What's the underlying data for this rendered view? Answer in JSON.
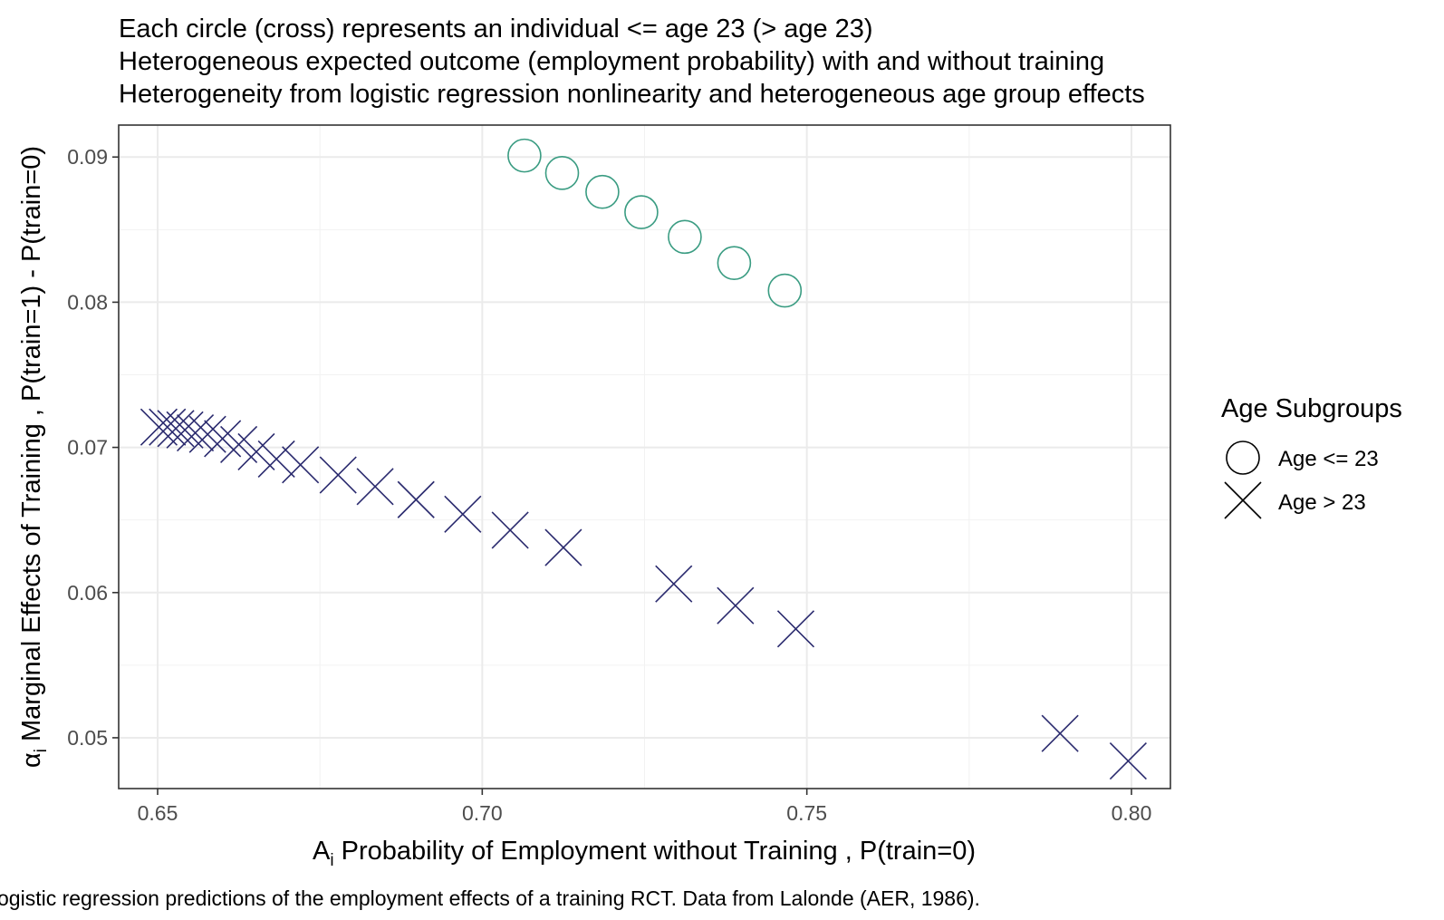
{
  "chart_data": {
    "type": "scatter",
    "title_lines": [
      "Each circle (cross) represents an individual <= age 23 (> age 23)",
      "Heterogeneous expected outcome (employment probability) with and without training",
      "Heterogeneity from logistic regression nonlinearity and heterogeneous age group effects"
    ],
    "xlabel": "Probability of Employment without Training , P(train=0)",
    "xlabel_symbol": "A",
    "xlabel_subscript": "i",
    "ylabel": "Marginal Effects of Training , P(train=1) - P(train=0)",
    "ylabel_symbol": "α",
    "ylabel_subscript": "i",
    "xlim": [
      0.644,
      0.806
    ],
    "ylim": [
      0.0465,
      0.0922
    ],
    "x_ticks": [
      0.65,
      0.7,
      0.75,
      0.8
    ],
    "x_tick_labels": [
      "0.65",
      "0.70",
      "0.75",
      "0.80"
    ],
    "y_ticks": [
      0.05,
      0.06,
      0.07,
      0.08,
      0.09
    ],
    "y_tick_labels": [
      "0.05",
      "0.06",
      "0.07",
      "0.08",
      "0.09"
    ],
    "grid": true,
    "legend": {
      "title": "Age Subgroups",
      "position": "right",
      "entries": [
        "Age <= 23",
        "Age > 23"
      ]
    },
    "caption": "ogistic regression predictions of the employment effects of a training RCT. Data from Lalonde (AER, 1986).",
    "series": [
      {
        "name": "Age <= 23",
        "marker": "circle",
        "color": "#3a9c82",
        "x": [
          0.7065,
          0.7123,
          0.7185,
          0.7245,
          0.7312,
          0.7388,
          0.7466
        ],
        "y": [
          0.0901,
          0.0889,
          0.0876,
          0.0862,
          0.0845,
          0.0827,
          0.0808
        ]
      },
      {
        "name": "Age > 23",
        "marker": "cross",
        "color": "#2a2a6e",
        "x": [
          0.6502,
          0.6515,
          0.6528,
          0.6542,
          0.6558,
          0.6577,
          0.66,
          0.6625,
          0.6652,
          0.6683,
          0.672,
          0.6778,
          0.6835,
          0.6898,
          0.697,
          0.7043,
          0.7125,
          0.7295,
          0.739,
          0.7483,
          0.789,
          0.7995
        ],
        "y": [
          0.0714,
          0.0714,
          0.0713,
          0.0712,
          0.071,
          0.0709,
          0.0706,
          0.0702,
          0.0697,
          0.0692,
          0.0688,
          0.0681,
          0.0673,
          0.0664,
          0.0654,
          0.0643,
          0.0631,
          0.0606,
          0.0591,
          0.0575,
          0.0503,
          0.0484
        ]
      }
    ]
  }
}
